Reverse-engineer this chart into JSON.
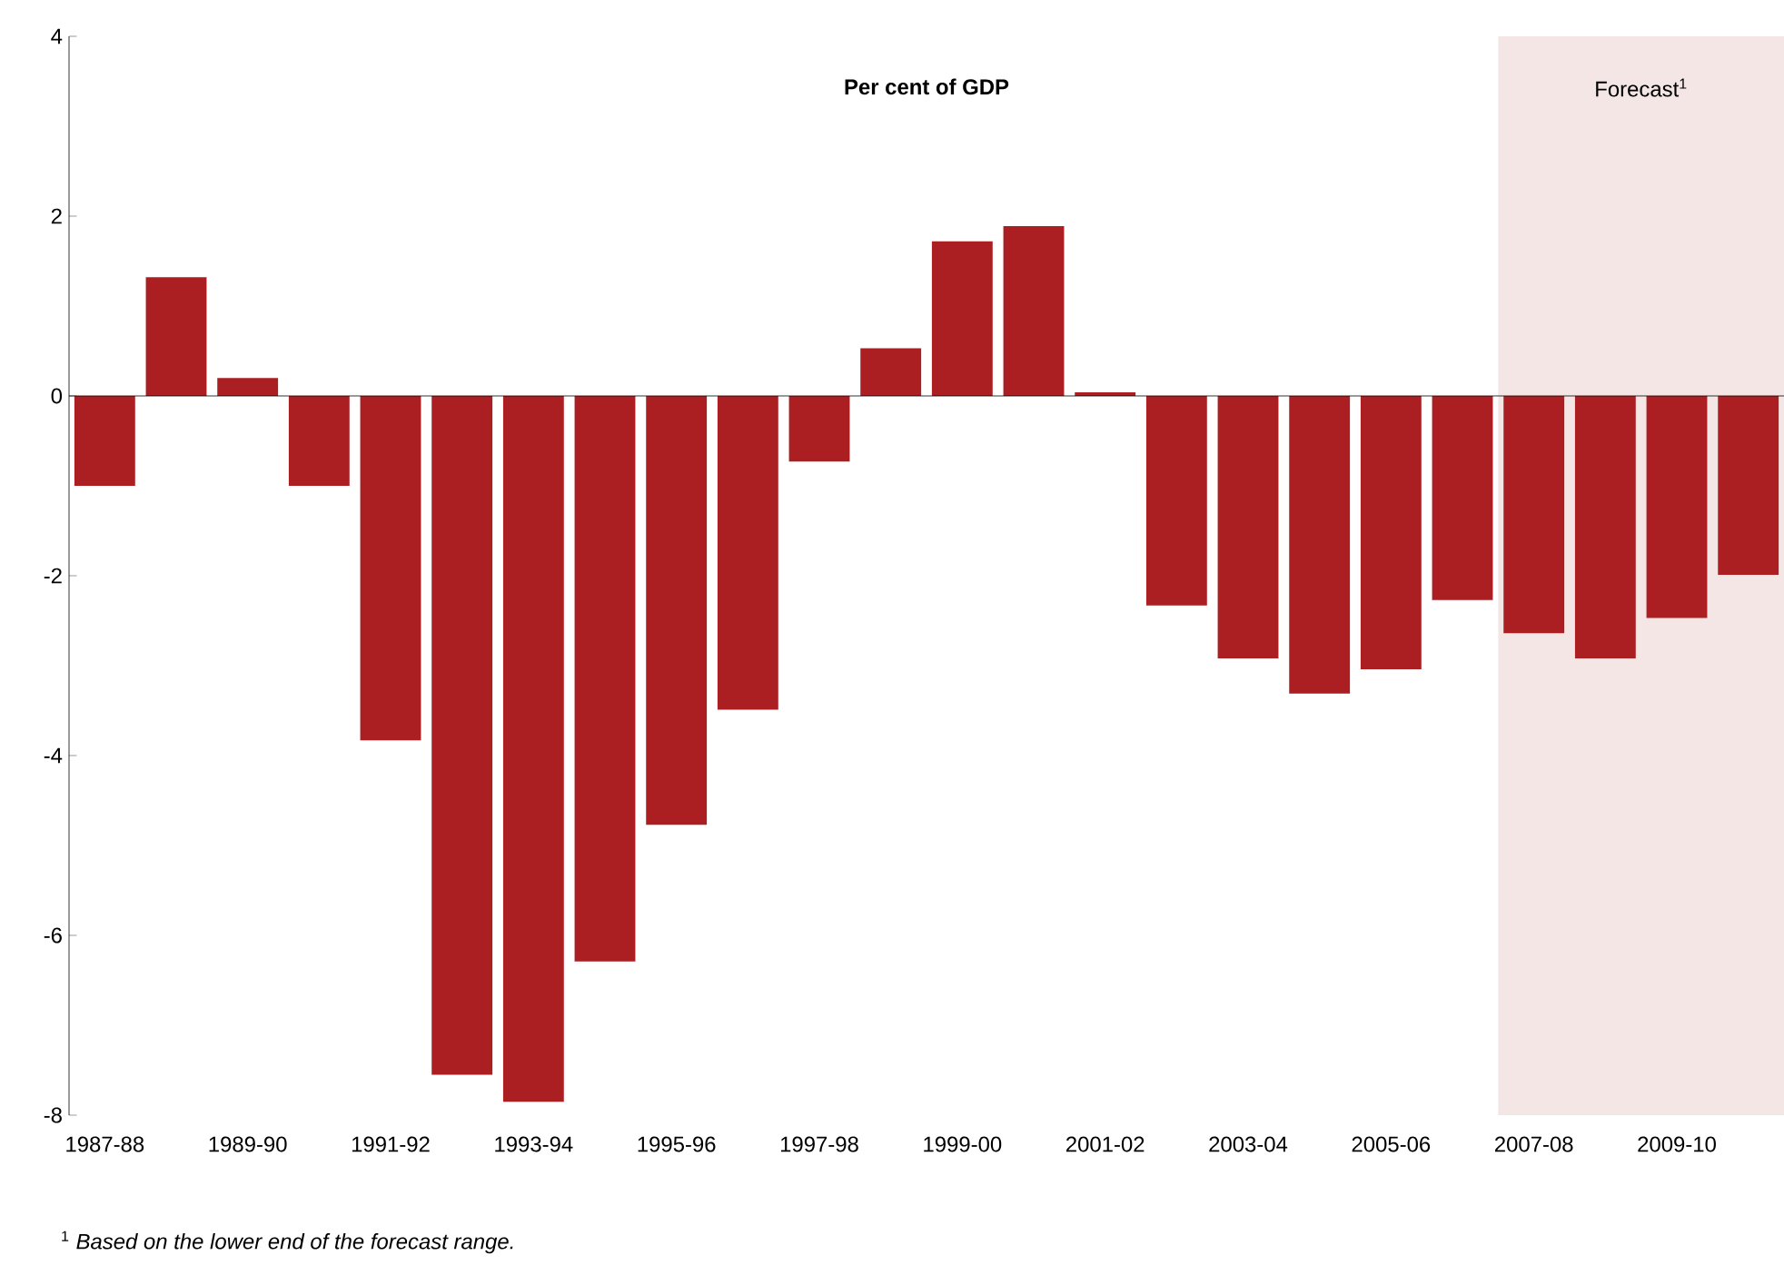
{
  "chart_data": {
    "type": "bar",
    "title": "Per cent of GDP",
    "categories": [
      "1987-88",
      null,
      "1989-90",
      null,
      "1991-92",
      null,
      "1993-94",
      null,
      "1995-96",
      null,
      "1997-98",
      null,
      "1999-00",
      null,
      "2001-02",
      null,
      "2003-04",
      null,
      "2005-06",
      null,
      "2007-08",
      null,
      "2009-10",
      null
    ],
    "values": [
      -1.0,
      1.32,
      0.2,
      -1.0,
      -3.83,
      -7.55,
      -7.85,
      -6.29,
      -4.77,
      -3.49,
      -0.73,
      0.53,
      1.72,
      1.89,
      0.04,
      -2.33,
      -2.92,
      -3.31,
      -3.04,
      -2.27,
      -2.64,
      -2.92,
      -2.47,
      -1.99
    ],
    "color": "#ab1f23",
    "ylim": [
      -8,
      4
    ],
    "yticks": [
      -8,
      -6,
      -4,
      -2,
      0,
      2,
      4
    ],
    "annotations": [
      "Forecast$^{1}$",
      "$^{1}$ *Based on the lower end of the forecast range.*"
    ]
  }
}
